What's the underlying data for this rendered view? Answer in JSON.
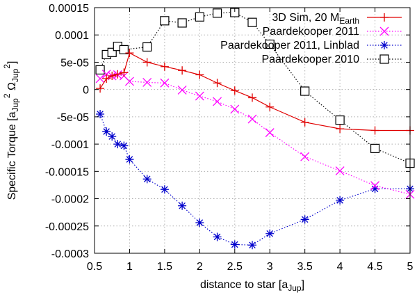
{
  "chart_data": {
    "type": "line",
    "xlabel": "distance to star [a",
    "xlabel_sub": "Jup",
    "xlabel_end": "]",
    "ylabel_parts": [
      "Specific Torque [a",
      "Jup",
      "2",
      " Ω",
      "Jup",
      "2",
      "]"
    ],
    "xlim": [
      0.5,
      5
    ],
    "ylim": [
      -0.0003,
      0.00015
    ],
    "xticks": [
      0.5,
      1,
      1.5,
      2,
      2.5,
      3,
      3.5,
      4,
      4.5,
      5
    ],
    "xtick_labels": [
      "0.5",
      "1",
      "1.5",
      "2",
      "2.5",
      "3",
      "3.5",
      "4",
      "4.5",
      "5"
    ],
    "yticks": [
      -0.0003,
      -0.00025,
      -0.0002,
      -0.00015,
      -0.0001,
      -5e-05,
      0,
      5e-05,
      0.0001,
      0.00015
    ],
    "ytick_labels": [
      "-0.0003",
      "-0.00025",
      "-0.0002",
      "-0.00015",
      "-0.0001",
      "-5e-05",
      "0",
      "5e-05",
      "0.0001",
      "0.00015"
    ],
    "grid": true,
    "legend_position": "top-right",
    "series": [
      {
        "name": "3D Sim, 20 M",
        "name_sub": "Earth",
        "color": "#e00000",
        "marker": "plus",
        "line": "solid",
        "x": [
          0.58,
          0.67,
          0.75,
          0.83,
          0.92,
          1.0,
          1.25,
          1.5,
          1.75,
          2.0,
          2.25,
          2.5,
          2.75,
          3.0,
          3.5,
          4.0,
          4.5,
          5.0
        ],
        "y": [
          2e-06,
          2e-05,
          2.5e-05,
          2.8e-05,
          3.1e-05,
          6.7e-05,
          5e-05,
          4.2e-05,
          3.5e-05,
          2.7e-05,
          1.2e-05,
          -2e-06,
          -1.5e-05,
          -3.2e-05,
          -6e-05,
          -7.2e-05,
          -7.5e-05,
          -7.5e-05
        ]
      },
      {
        "name": "Paardekooper 2011",
        "color": "#ff00ff",
        "marker": "x",
        "line": "dotted",
        "x": [
          0.58,
          0.67,
          0.75,
          0.83,
          0.92,
          1.0,
          1.25,
          1.5,
          1.75,
          2.0,
          2.25,
          2.5,
          2.75,
          3.0,
          3.5,
          4.0,
          4.5,
          5.0
        ],
        "y": [
          2e-05,
          2.8e-05,
          2.5e-05,
          2.7e-05,
          2.5e-05,
          1.5e-05,
          1.3e-05,
          1.2e-05,
          -1e-06,
          -1.2e-05,
          -2.2e-05,
          -3.6e-05,
          -5.4e-05,
          -7.9e-05,
          -0.000123,
          -0.000149,
          -0.000176,
          -0.000192
        ]
      },
      {
        "name": "Paardekooper 2011, Linblad",
        "color": "#0000cc",
        "marker": "star",
        "line": "dotted",
        "x": [
          0.58,
          0.67,
          0.75,
          0.83,
          0.92,
          1.0,
          1.25,
          1.5,
          1.75,
          2.0,
          2.25,
          2.5,
          2.75,
          3.0,
          3.5,
          4.0,
          4.5,
          5.0
        ],
        "y": [
          -4.5e-05,
          -7.7e-05,
          -8.6e-05,
          -0.0001,
          -0.000103,
          -0.000128,
          -0.000164,
          -0.000183,
          -0.000213,
          -0.000244,
          -0.00027,
          -0.000284,
          -0.000285,
          -0.000264,
          -0.000238,
          -0.000203,
          -0.000182,
          -0.000182
        ]
      },
      {
        "name": "Paardekooper 2010",
        "color": "#000000",
        "marker": "square",
        "line": "dotted",
        "x": [
          0.58,
          0.67,
          0.75,
          0.83,
          0.92,
          1.25,
          1.5,
          1.75,
          2.0,
          2.25,
          2.5,
          2.75,
          3.0,
          3.5,
          4.0,
          4.5,
          5.0
        ],
        "y": [
          3.6e-05,
          6.4e-05,
          6.8e-05,
          7.9e-05,
          7.3e-05,
          7.8e-05,
          0.000126,
          0.000122,
          0.000133,
          0.00014,
          0.000141,
          0.000123,
          8.3e-05,
          -3e-06,
          -5.6e-05,
          -0.000108,
          -0.000135
        ]
      }
    ]
  }
}
